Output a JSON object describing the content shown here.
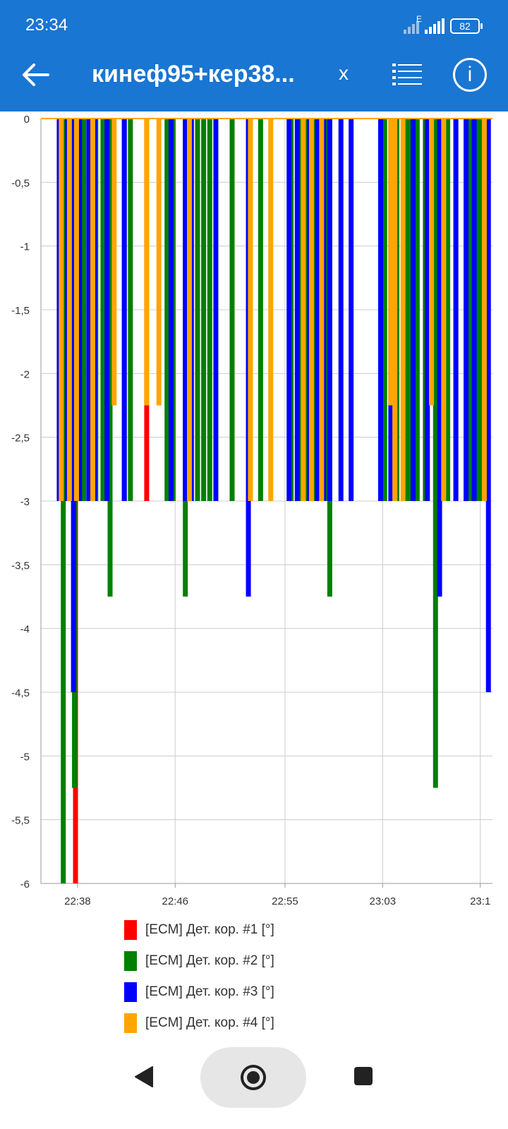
{
  "status_bar": {
    "time": "23:34",
    "network_type": "E",
    "battery": "82"
  },
  "header": {
    "title": "кинеф95+кер38...",
    "close_label": "x",
    "info_label": "i"
  },
  "icons": {
    "back": "arrow-left-icon",
    "list": "list-icon",
    "info": "info-icon",
    "nav_back": "triangle-back-icon",
    "nav_home": "circle-home-icon",
    "nav_recent": "square-recent-icon"
  },
  "chart_data": {
    "type": "bar",
    "ylim": [
      -6,
      0
    ],
    "yticks": [
      0,
      -0.5,
      -1,
      -1.5,
      -2,
      -2.5,
      -3,
      -3.5,
      -4,
      -4.5,
      -5,
      -5.5,
      -6
    ],
    "ytick_labels": [
      "0",
      "-0,5",
      "-1",
      "-1,5",
      "-2",
      "-2,5",
      "-3",
      "-3,5",
      "-4",
      "-4,5",
      "-5",
      "-5,5",
      "-6"
    ],
    "xlim": [
      "22:35",
      "23:12"
    ],
    "xticks": [
      "22:38",
      "22:46",
      "22:55",
      "23:03",
      "23:11"
    ],
    "xtick_labels": [
      "22:38",
      "22:46",
      "22:55",
      "23:03",
      "23:1"
    ],
    "grid": true,
    "legend_position": "bottom",
    "series": [
      {
        "name": "[ECM] Дет. кор. #1 [°]",
        "color": "#ff0000",
        "x": [
          "22:37:50",
          "22:43:40",
          "22:57:30"
        ],
        "values": [
          -6,
          -3,
          -3
        ]
      },
      {
        "name": "[ECM] Дет. кор. #2 [°]",
        "color": "#008000",
        "x": [
          "22:36:50",
          "22:37:25",
          "22:37:45",
          "22:38:30",
          "22:39:30",
          "22:40:05",
          "22:40:40",
          "22:41:50",
          "22:42:20",
          "22:45:20",
          "22:45:50",
          "22:46:50",
          "22:47:50",
          "22:48:20",
          "22:48:50",
          "22:50:40",
          "22:53:00",
          "22:55:30",
          "22:56:10",
          "22:56:40",
          "22:57:15",
          "22:57:50",
          "22:58:20",
          "22:58:40",
          "23:03:10",
          "23:04:10",
          "23:04:50",
          "23:05:10",
          "23:05:50",
          "23:06:30",
          "23:07:20",
          "23:08:20",
          "23:09:00",
          "23:10:10",
          "23:10:50",
          "23:11:10"
        ],
        "values": [
          -6,
          -3,
          -5.25,
          -3,
          -3,
          -3,
          -3.75,
          -3,
          -3,
          -3,
          -3,
          -3.75,
          -3,
          -3,
          -3,
          -3,
          -3,
          -3,
          -3,
          -3,
          -3,
          -3,
          -3,
          -3.75,
          -3,
          -3,
          -3,
          -3,
          -3,
          -3,
          -5.25,
          -3,
          -3,
          -3,
          -3,
          -3
        ]
      },
      {
        "name": "[ECM] Дет. кор. #3 [°]",
        "color": "#0000ff",
        "x": [
          "22:36:30",
          "22:37:10",
          "22:37:40",
          "22:38:10",
          "22:38:55",
          "22:39:25",
          "22:40:25",
          "22:41:50",
          "22:45:40",
          "22:46:50",
          "22:47:20",
          "22:49:20",
          "22:52:00",
          "22:55:20",
          "22:56:00",
          "22:57:00",
          "22:57:40",
          "22:58:10",
          "22:58:40",
          "22:59:35",
          "23:00:25",
          "23:02:50",
          "23:03:40",
          "23:05:30",
          "23:06:40",
          "23:07:40",
          "23:09:00",
          "23:09:50",
          "23:10:30",
          "23:11:40"
        ],
        "values": [
          -3,
          -3,
          -4.5,
          -3,
          -3,
          -3,
          -3,
          -3,
          -3,
          -3,
          -3,
          -3,
          -3.75,
          -3,
          -3,
          -3,
          -3,
          -3,
          -3,
          -3,
          -3,
          -3,
          -3,
          -3,
          -3,
          -3.75,
          -3,
          -3,
          -3,
          -4.5
        ]
      },
      {
        "name": "[ECM] Дет. кор. #4 [°]",
        "color": "#ffa500",
        "x": [
          "22:36:40",
          "22:37:20",
          "22:37:55",
          "22:39:15",
          "22:41:00",
          "22:43:40",
          "22:44:40",
          "22:47:10",
          "22:52:10",
          "22:53:50",
          "22:56:30",
          "22:57:10",
          "22:58:00",
          "23:03:40",
          "23:04:00",
          "23:04:40",
          "23:07:00",
          "23:08:00",
          "23:11:20"
        ],
        "values": [
          -3,
          -3,
          -3,
          -3,
          -2.25,
          -2.25,
          -2.25,
          -3,
          -3,
          -3,
          -3,
          -3,
          -3,
          -2.25,
          -3,
          -3,
          -2.25,
          -3,
          -3
        ]
      }
    ]
  },
  "legend": [
    {
      "label": "[ECM] Дет. кор. #1 [°]",
      "color": "#ff0000"
    },
    {
      "label": "[ECM] Дет. кор. #2 [°]",
      "color": "#008000"
    },
    {
      "label": "[ECM] Дет. кор. #3 [°]",
      "color": "#0000ff"
    },
    {
      "label": "[ECM] Дет. кор. #4 [°]",
      "color": "#ffa500"
    }
  ]
}
